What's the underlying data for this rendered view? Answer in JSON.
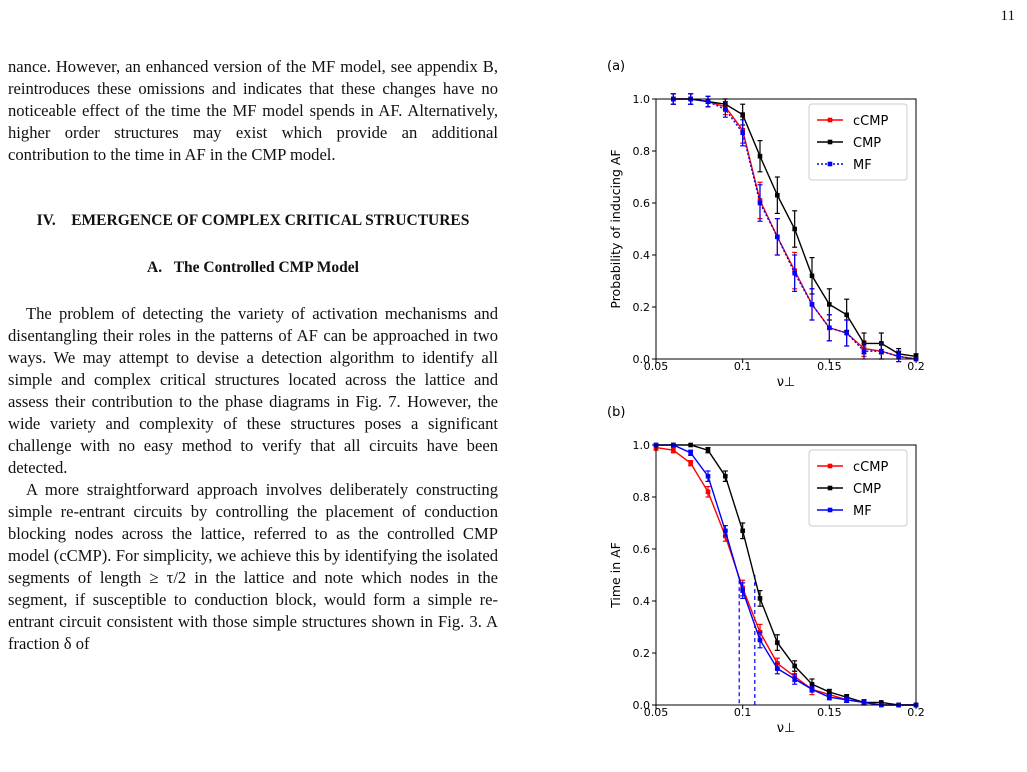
{
  "page_number": "11",
  "paragraphs": [
    "nance. However, an enhanced version of the MF model, see appendix B, reintroduces these omissions and indicates that these changes have no noticeable effect of the time the MF model spends in AF. Alternatively, higher order structures may exist which provide an additional contribution to the time in AF in the CMP model."
  ],
  "section": {
    "number": "IV.",
    "title": "EMERGENCE OF COMPLEX CRITICAL STRUCTURES"
  },
  "subsection": {
    "label": "A.",
    "title": "The Controlled CMP Model"
  },
  "body_paragraphs": [
    "The problem of detecting the variety of activation mechanisms and disentangling their roles in the patterns of AF can be approached in two ways. We may attempt to devise a detection algorithm to identify all simple and complex critical structures located across the lattice and assess their contribution to the phase diagrams in Fig. 7. However, the wide variety and complexity of these structures poses a significant challenge with no easy method to verify that all circuits have been detected.",
    "A more straightforward approach involves deliberately constructing simple re-entrant circuits by controlling the placement of conduction blocking nodes across the lattice, referred to as the controlled CMP model (cCMP). For simplicity, we achieve this by identifying the isolated segments of length ≥ τ/2 in the lattice and note which nodes in the segment, if susceptible to conduction block, would form a simple re-entrant circuit consistent with those simple structures shown in Fig. 3. A fraction δ of"
  ],
  "chart_data": [
    {
      "type": "line",
      "panel_label": "(a)",
      "xlabel": "ν⊥",
      "ylabel": "Probability of inducing AF",
      "xlim": [
        0.05,
        0.2
      ],
      "ylim": [
        0.0,
        1.0
      ],
      "x_ticks": [
        "0.05",
        "0.1",
        "0.15",
        "0.2"
      ],
      "y_ticks": [
        "0.0",
        "0.2",
        "0.4",
        "0.6",
        "0.8",
        "1.0"
      ],
      "legend_position": "top-right",
      "x": [
        0.06,
        0.07,
        0.08,
        0.09,
        0.1,
        0.11,
        0.12,
        0.13,
        0.14,
        0.15,
        0.16,
        0.17,
        0.18,
        0.19,
        0.2
      ],
      "series": [
        {
          "name": "cCMP",
          "color": "#ff0000",
          "style": "solid",
          "values": [
            1.0,
            1.0,
            0.99,
            0.97,
            0.88,
            0.61,
            0.47,
            0.34,
            0.21,
            0.12,
            0.1,
            0.04,
            0.03,
            0.01,
            0.0
          ],
          "errors": [
            0.02,
            0.02,
            0.02,
            0.03,
            0.05,
            0.07,
            0.07,
            0.07,
            0.06,
            0.05,
            0.05,
            0.03,
            0.03,
            0.02,
            0.0
          ]
        },
        {
          "name": "CMP",
          "color": "#000000",
          "style": "solid",
          "values": [
            1.0,
            1.0,
            0.99,
            0.98,
            0.94,
            0.78,
            0.63,
            0.5,
            0.32,
            0.21,
            0.17,
            0.06,
            0.06,
            0.02,
            0.01
          ],
          "errors": [
            0.02,
            0.02,
            0.02,
            0.02,
            0.04,
            0.06,
            0.07,
            0.07,
            0.07,
            0.06,
            0.06,
            0.04,
            0.04,
            0.02,
            0.01
          ]
        },
        {
          "name": "MF",
          "color": "#0000ff",
          "style": "dotted",
          "values": [
            1.0,
            1.0,
            0.99,
            0.96,
            0.87,
            0.6,
            0.47,
            0.33,
            0.21,
            0.12,
            0.1,
            0.03,
            0.03,
            0.01,
            0.0
          ],
          "errors": [
            0.02,
            0.02,
            0.02,
            0.03,
            0.05,
            0.07,
            0.07,
            0.07,
            0.06,
            0.05,
            0.05,
            0.03,
            0.03,
            0.02,
            0.0
          ]
        }
      ]
    },
    {
      "type": "line",
      "panel_label": "(b)",
      "xlabel": "ν⊥",
      "ylabel": "Time in AF",
      "xlim": [
        0.05,
        0.2
      ],
      "ylim": [
        0.0,
        1.0
      ],
      "x_ticks": [
        "0.05",
        "0.1",
        "0.15",
        "0.2"
      ],
      "y_ticks": [
        "0.0",
        "0.2",
        "0.4",
        "0.6",
        "0.8",
        "1.0"
      ],
      "legend_position": "top-right",
      "x": [
        0.05,
        0.06,
        0.07,
        0.08,
        0.09,
        0.1,
        0.11,
        0.12,
        0.13,
        0.14,
        0.15,
        0.16,
        0.17,
        0.18,
        0.19,
        0.2
      ],
      "series": [
        {
          "name": "cCMP",
          "color": "#ff0000",
          "style": "solid",
          "values": [
            0.99,
            0.98,
            0.93,
            0.82,
            0.65,
            0.45,
            0.28,
            0.16,
            0.11,
            0.06,
            0.04,
            0.02,
            0.01,
            0.0,
            0.0,
            0.0
          ],
          "errors": [
            0.01,
            0.01,
            0.01,
            0.02,
            0.02,
            0.03,
            0.03,
            0.02,
            0.02,
            0.02,
            0.01,
            0.01,
            0.01,
            0.0,
            0.0,
            0.0
          ]
        },
        {
          "name": "CMP",
          "color": "#000000",
          "style": "solid",
          "values": [
            1.0,
            1.0,
            1.0,
            0.98,
            0.88,
            0.67,
            0.41,
            0.24,
            0.15,
            0.08,
            0.05,
            0.03,
            0.01,
            0.01,
            0.0,
            0.0
          ],
          "errors": [
            0.0,
            0.0,
            0.0,
            0.01,
            0.02,
            0.03,
            0.03,
            0.03,
            0.02,
            0.02,
            0.01,
            0.01,
            0.01,
            0.0,
            0.0,
            0.0
          ]
        },
        {
          "name": "MF",
          "color": "#0000ff",
          "style": "solid",
          "values": [
            1.0,
            1.0,
            0.97,
            0.88,
            0.67,
            0.44,
            0.25,
            0.14,
            0.1,
            0.06,
            0.03,
            0.02,
            0.01,
            0.0,
            0.0,
            0.0
          ],
          "errors": [
            0.0,
            0.0,
            0.01,
            0.02,
            0.02,
            0.03,
            0.03,
            0.02,
            0.02,
            0.01,
            0.01,
            0.01,
            0.0,
            0.0,
            0.0,
            0.0
          ]
        }
      ],
      "annotations": [
        {
          "type": "vline",
          "x": 0.098,
          "y_top": 0.48,
          "style": "dashed",
          "color": "#0000ff"
        },
        {
          "type": "vline",
          "x": 0.107,
          "y_top": 0.5,
          "style": "dashed",
          "color": "#0000ff"
        }
      ]
    }
  ]
}
